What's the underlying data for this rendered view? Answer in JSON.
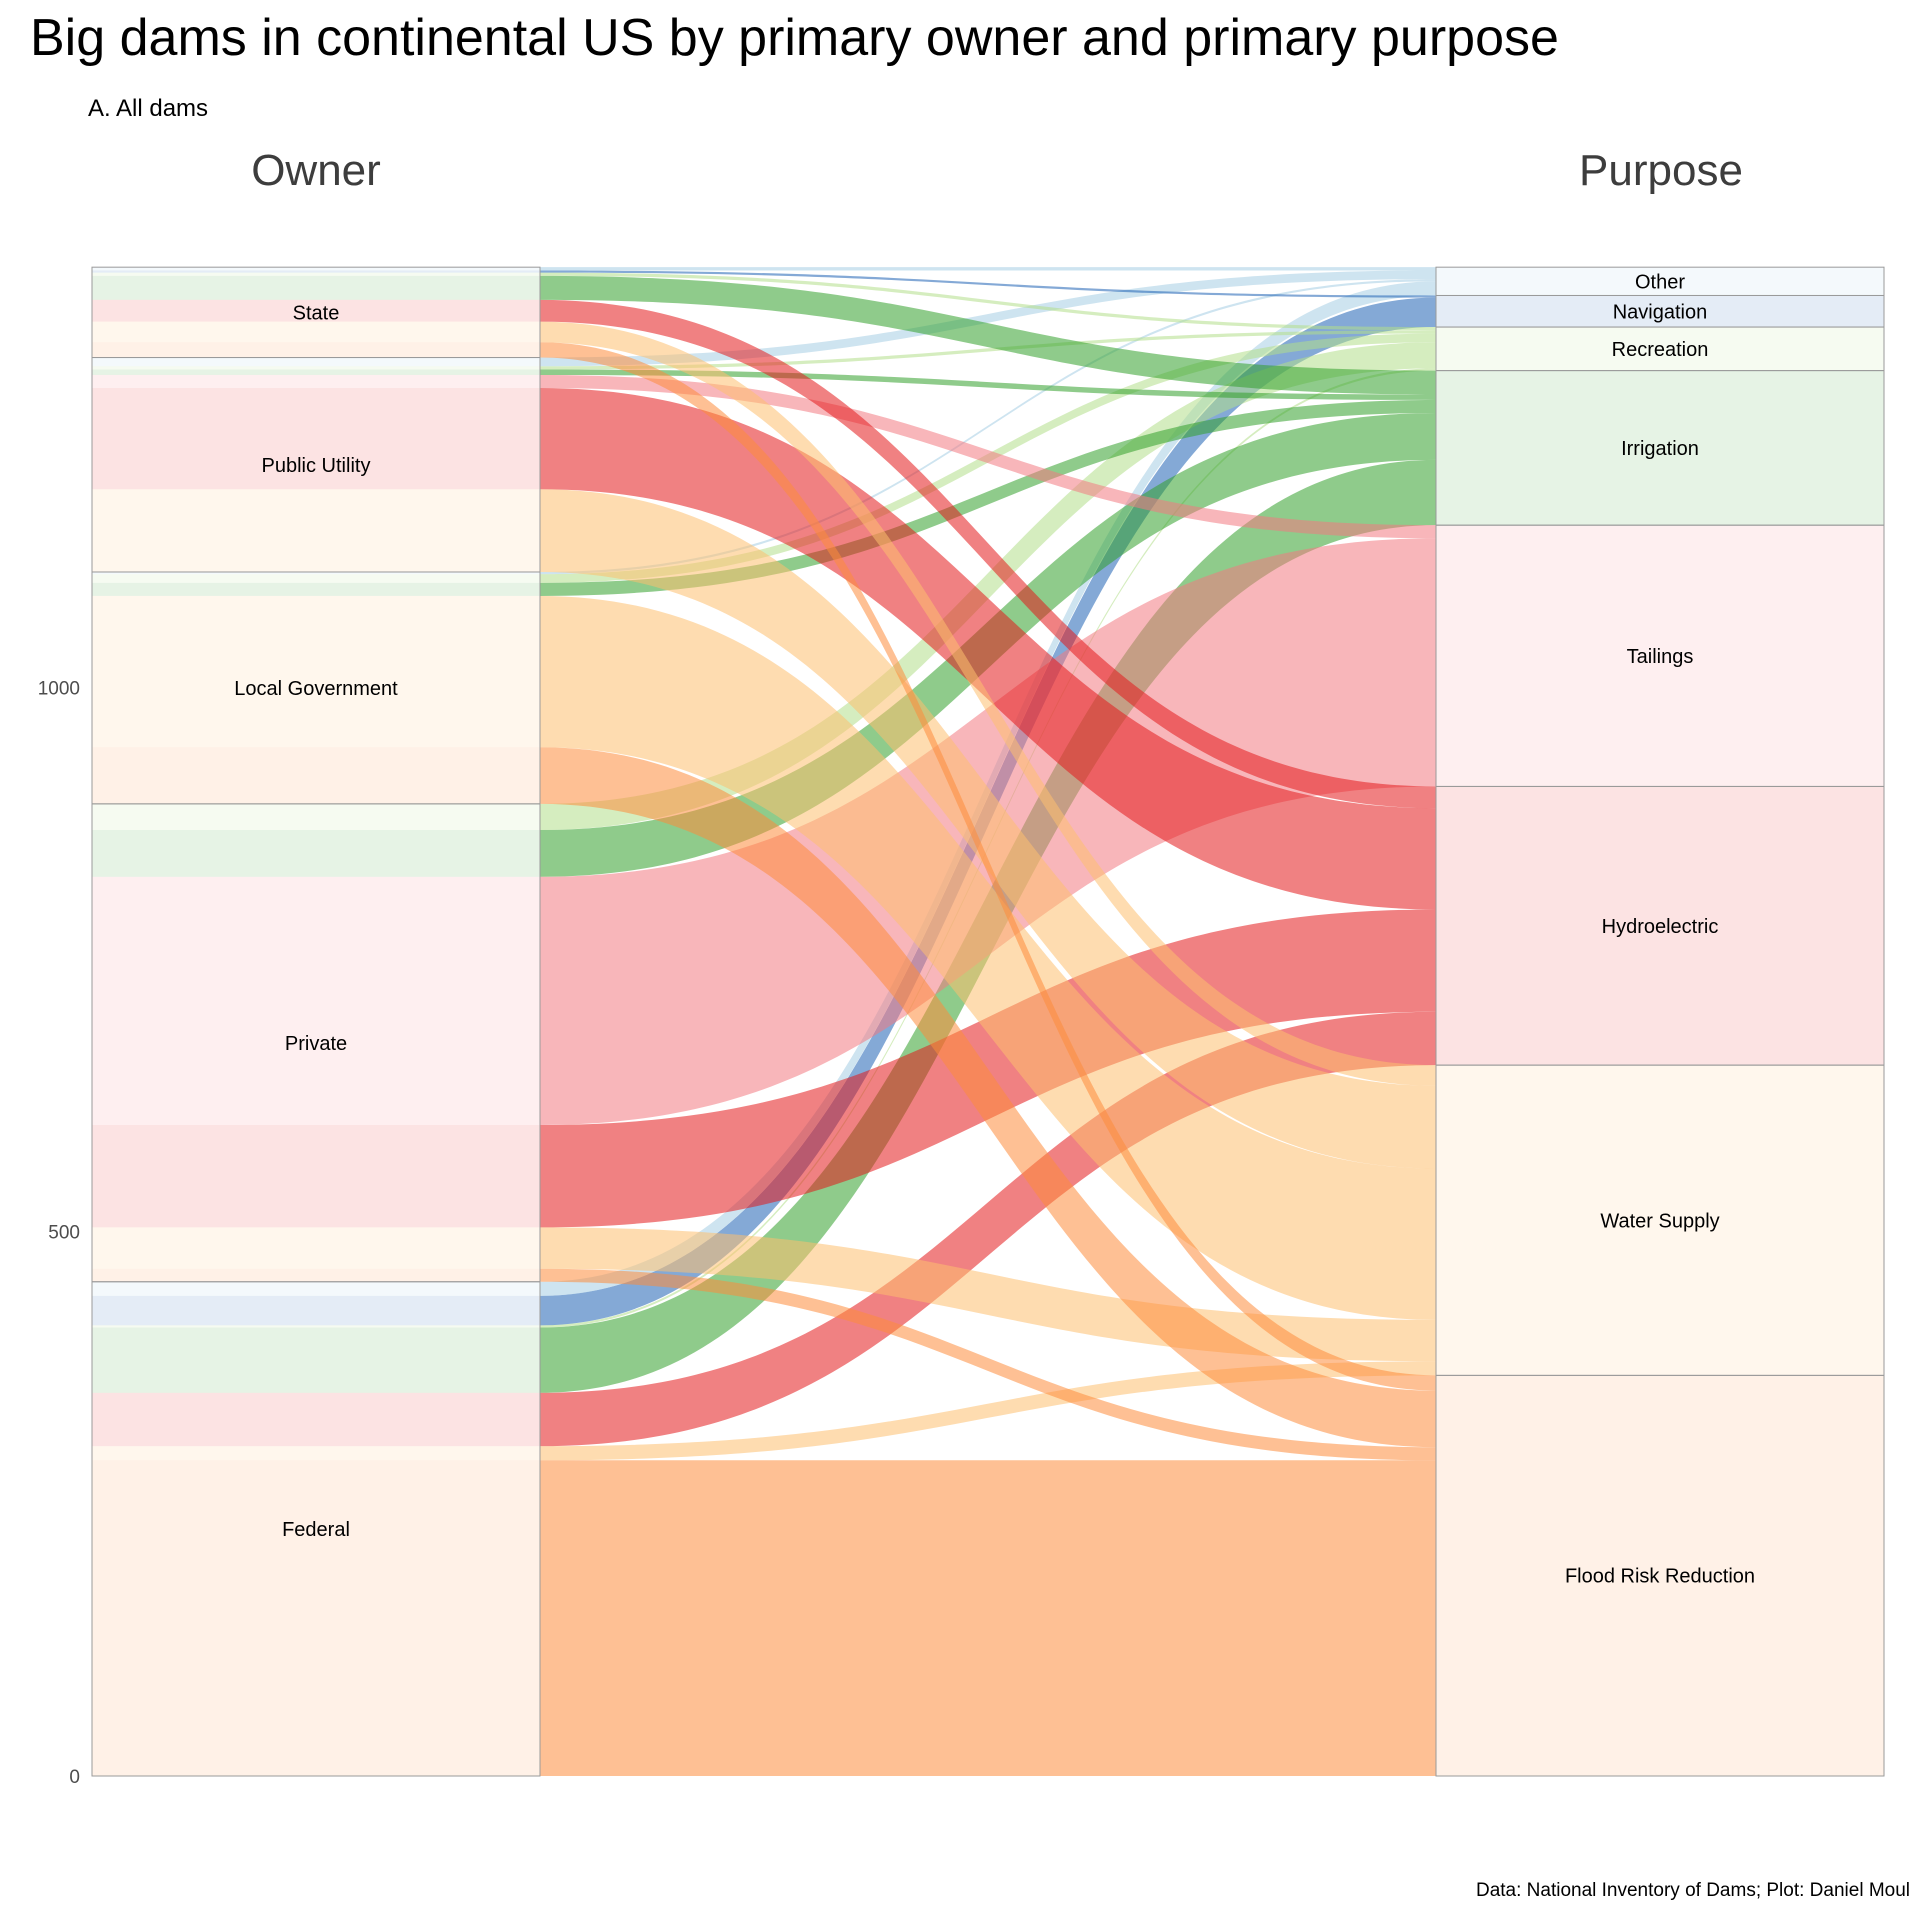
{
  "title": "Big dams in continental US by primary owner and primary purpose",
  "subtitle": "A. All dams",
  "caption": "Data: National Inventory of Dams; Plot: Daniel Moul",
  "chart_data": {
    "type": "alluvial",
    "axes": [
      "Owner",
      "Purpose"
    ],
    "y_axis": {
      "ticks": [
        0,
        500,
        1000
      ],
      "range": [
        0,
        1388
      ]
    },
    "owners": [
      "Federal",
      "Private",
      "Local Government",
      "Public Utility",
      "State"
    ],
    "purposes": [
      "Flood Risk Reduction",
      "Water Supply",
      "Hydroelectric",
      "Tailings",
      "Irrigation",
      "Recreation",
      "Navigation",
      "Other"
    ],
    "purpose_colors": {
      "Flood Risk Reduction": "#fd8d3c",
      "Water Supply": "#fdbf6f",
      "Hydroelectric": "#e31a1c",
      "Tailings": "#f37a81",
      "Irrigation": "#33a02c",
      "Recreation": "#b2df8a",
      "Navigation": "#1f63b4",
      "Other": "#a6cee3"
    },
    "flows": [
      {
        "owner": "Federal",
        "purpose": "Flood Risk Reduction",
        "value": 290
      },
      {
        "owner": "Federal",
        "purpose": "Water Supply",
        "value": 13
      },
      {
        "owner": "Federal",
        "purpose": "Hydroelectric",
        "value": 49
      },
      {
        "owner": "Federal",
        "purpose": "Tailings",
        "value": 0
      },
      {
        "owner": "Federal",
        "purpose": "Irrigation",
        "value": 60
      },
      {
        "owner": "Federal",
        "purpose": "Recreation",
        "value": 2
      },
      {
        "owner": "Federal",
        "purpose": "Navigation",
        "value": 27
      },
      {
        "owner": "Federal",
        "purpose": "Other",
        "value": 13
      },
      {
        "owner": "Private",
        "purpose": "Flood Risk Reduction",
        "value": 12
      },
      {
        "owner": "Private",
        "purpose": "Water Supply",
        "value": 38
      },
      {
        "owner": "Private",
        "purpose": "Hydroelectric",
        "value": 94
      },
      {
        "owner": "Private",
        "purpose": "Tailings",
        "value": 228
      },
      {
        "owner": "Private",
        "purpose": "Irrigation",
        "value": 43
      },
      {
        "owner": "Private",
        "purpose": "Recreation",
        "value": 24
      },
      {
        "owner": "Private",
        "purpose": "Navigation",
        "value": 0
      },
      {
        "owner": "Private",
        "purpose": "Other",
        "value": 0
      },
      {
        "owner": "Local Government",
        "purpose": "Flood Risk Reduction",
        "value": 52
      },
      {
        "owner": "Local Government",
        "purpose": "Water Supply",
        "value": 139
      },
      {
        "owner": "Local Government",
        "purpose": "Hydroelectric",
        "value": 0
      },
      {
        "owner": "Local Government",
        "purpose": "Tailings",
        "value": 0
      },
      {
        "owner": "Local Government",
        "purpose": "Irrigation",
        "value": 12
      },
      {
        "owner": "Local Government",
        "purpose": "Recreation",
        "value": 8
      },
      {
        "owner": "Local Government",
        "purpose": "Navigation",
        "value": 0
      },
      {
        "owner": "Local Government",
        "purpose": "Other",
        "value": 2
      },
      {
        "owner": "Public Utility",
        "purpose": "Flood Risk Reduction",
        "value": 0
      },
      {
        "owner": "Public Utility",
        "purpose": "Water Supply",
        "value": 76
      },
      {
        "owner": "Public Utility",
        "purpose": "Hydroelectric",
        "value": 93
      },
      {
        "owner": "Public Utility",
        "purpose": "Tailings",
        "value": 12
      },
      {
        "owner": "Public Utility",
        "purpose": "Irrigation",
        "value": 5
      },
      {
        "owner": "Public Utility",
        "purpose": "Recreation",
        "value": 3
      },
      {
        "owner": "Public Utility",
        "purpose": "Navigation",
        "value": 0
      },
      {
        "owner": "Public Utility",
        "purpose": "Other",
        "value": 8
      },
      {
        "owner": "State",
        "purpose": "Flood Risk Reduction",
        "value": 14
      },
      {
        "owner": "State",
        "purpose": "Water Supply",
        "value": 19
      },
      {
        "owner": "State",
        "purpose": "Hydroelectric",
        "value": 20
      },
      {
        "owner": "State",
        "purpose": "Tailings",
        "value": 0
      },
      {
        "owner": "State",
        "purpose": "Irrigation",
        "value": 22
      },
      {
        "owner": "State",
        "purpose": "Recreation",
        "value": 3
      },
      {
        "owner": "State",
        "purpose": "Navigation",
        "value": 2
      },
      {
        "owner": "State",
        "purpose": "Other",
        "value": 3
      }
    ]
  }
}
